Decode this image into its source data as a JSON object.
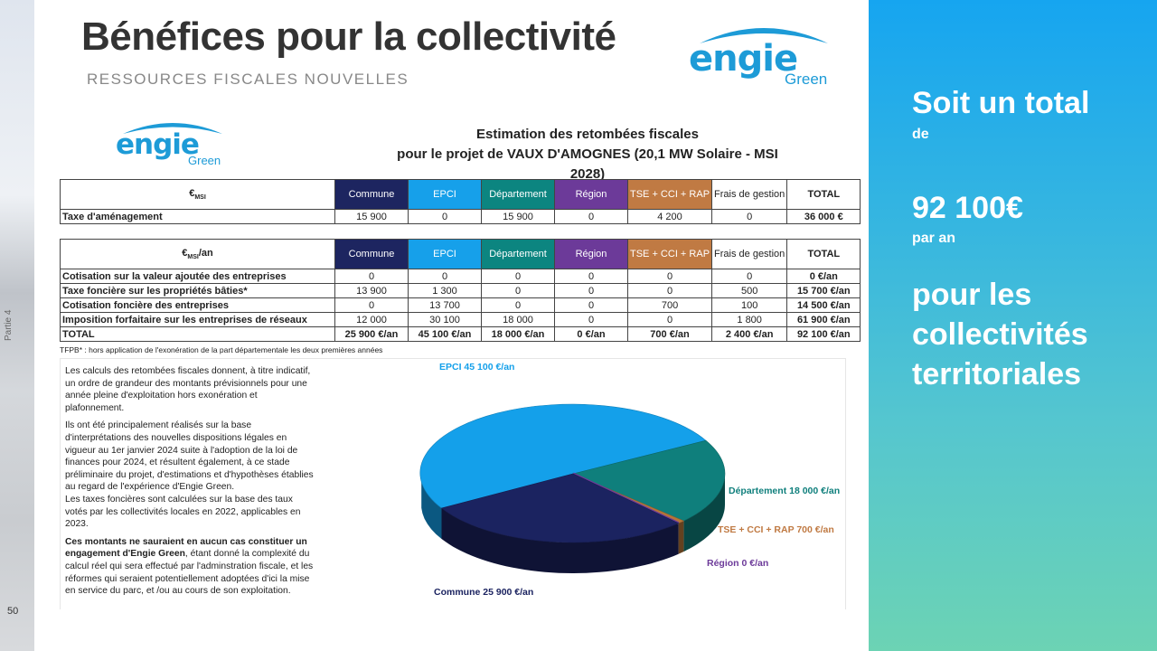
{
  "slide": {
    "title": "Bénéfices pour la collectivité",
    "subtitle": "RESSOURCES FISCALES NOUVELLES",
    "side_label": "Partie 4",
    "page_number": "50"
  },
  "logo": {
    "word": "ENGIE",
    "sub": "Green"
  },
  "estimation": {
    "line1": "Estimation des retombées fiscales",
    "line2": "pour le projet de VAUX D'AMOGNES (20,1 MW Solaire - MSI 2028)"
  },
  "table1": {
    "unit_main": "€",
    "unit_sub": "MSI",
    "headers": [
      "Commune",
      "EPCI",
      "Département",
      "Région",
      "TSE + CCI + RAP",
      "Frais de gestion",
      "TOTAL"
    ],
    "rows": [
      {
        "label": "Taxe d'aménagement",
        "values": [
          "15 900",
          "0",
          "15 900",
          "0",
          "4 200",
          "0",
          "36 000 €"
        ]
      }
    ]
  },
  "table2": {
    "unit_main": "€",
    "unit_sub": "MSI",
    "unit_suffix": "/an",
    "headers": [
      "Commune",
      "EPCI",
      "Département",
      "Région",
      "TSE + CCI + RAP",
      "Frais de gestion",
      "TOTAL"
    ],
    "rows": [
      {
        "label": "Cotisation sur la valeur ajoutée des entreprises",
        "values": [
          "0",
          "0",
          "0",
          "0",
          "0",
          "0",
          "0 €/an"
        ]
      },
      {
        "label": "Taxe foncière sur les propriétés bâties*",
        "values": [
          "13 900",
          "1 300",
          "0",
          "0",
          "0",
          "500",
          "15 700 €/an"
        ]
      },
      {
        "label": "Cotisation foncière des entreprises",
        "values": [
          "0",
          "13 700",
          "0",
          "0",
          "700",
          "100",
          "14 500 €/an"
        ]
      },
      {
        "label": "Imposition forfaitaire sur les entreprises de réseaux",
        "values": [
          "12 000",
          "30 100",
          "18 000",
          "0",
          "0",
          "1 800",
          "61 900 €/an"
        ]
      }
    ],
    "total": {
      "label": "TOTAL",
      "values": [
        "25 900 €/an",
        "45 100 €/an",
        "18 000 €/an",
        "0 €/an",
        "700 €/an",
        "2 400 €/an",
        "92 100 €/an"
      ]
    }
  },
  "footnote": "TFPB* : hors application de l'exonération de la part départementale les deux premières années",
  "paragraphs": {
    "p1": "Les calculs des retombées fiscales donnent, à titre indicatif, un ordre de grandeur des montants prévisionnels pour une année pleine d'exploitation hors exonération et plafonnement.",
    "p2": "Ils ont été principalement réalisés sur la base d'interprétations des nouvelles dispositions légales en vigueur au 1er janvier 2024 suite à l'adoption de la loi de finances pour 2024, et résultent également, à ce stade préliminaire du projet, d'estimations et d'hypothèses établies au regard de l'expérience d'Engie Green.",
    "p3": "Les taxes foncières sont calculées sur la base des taux votés par les collectivités locales en 2022, applicables en 2023.",
    "p4_bold": "Ces montants ne sauraient en aucun cas constituer un engagement d'Engie Green",
    "p4_rest": ", étant donné la complexité du calcul réel qui sera effectué par l'adminstration fiscale, et les réformes qui seraient potentiellement adoptées d'ici la mise en service du parc, et /ou au cours de son exploitation."
  },
  "chart_data": {
    "type": "pie",
    "title": "",
    "series": [
      {
        "name": "EPCI",
        "value": 45100,
        "label": "EPCI 45 100 €/an",
        "color": "#14a0ea"
      },
      {
        "name": "Département",
        "value": 18000,
        "label": "Département 18 000 €/an",
        "color": "#0f7f7c"
      },
      {
        "name": "TSE + CCI + RAP",
        "value": 700,
        "label": "TSE + CCI + RAP  700 €/an",
        "color": "#b57639"
      },
      {
        "name": "Région",
        "value": 0,
        "label": "Région  0 €/an",
        "color": "#6c3a99"
      },
      {
        "name": "Commune",
        "value": 25900,
        "label": "Commune 25 900 €/an",
        "color": "#1b2360"
      }
    ],
    "label_colors": {
      "EPCI": "#14a0ea",
      "Département": "#0f7f7c",
      "TSE + CCI + RAP": "#c07a43",
      "Région": "#6c3a99",
      "Commune": "#1b2360"
    }
  },
  "summary": {
    "line1": "Soit un total",
    "line2": "de",
    "amount": "92 100€",
    "period": "par an",
    "line3": "pour les",
    "line4": "collectivités",
    "line5": "territoriales"
  },
  "colors": {
    "commune": "#1d2560",
    "epci": "#16a0ea",
    "departement": "#0c8580",
    "region": "#6c3a99",
    "tse": "#c07a43",
    "accent_panel": "#16a5f0",
    "logo_blue": "#1d9bd7"
  }
}
